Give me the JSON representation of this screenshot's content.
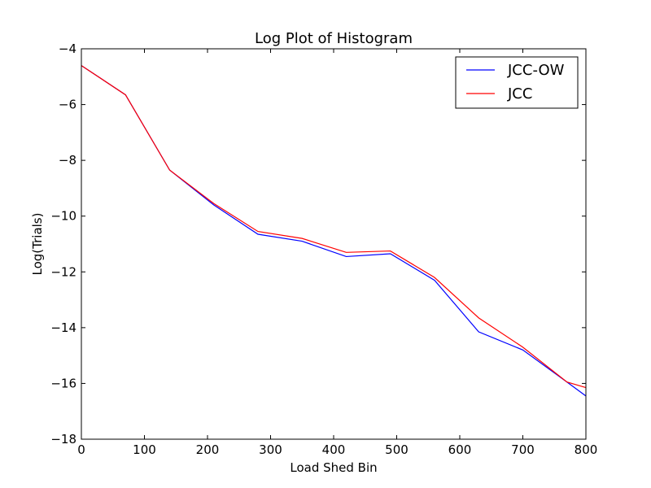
{
  "chart_data": {
    "type": "line",
    "title": "Log Plot of Histogram",
    "xlabel": "Load Shed Bin",
    "ylabel": "Log(Trials)",
    "xlim": [
      0,
      800
    ],
    "ylim": [
      -18,
      -4
    ],
    "xticks": [
      0,
      100,
      200,
      300,
      400,
      500,
      600,
      700,
      800
    ],
    "yticks": [
      -18,
      -16,
      -14,
      -12,
      -10,
      -8,
      -6,
      -4
    ],
    "xtick_labels": [
      "0",
      "100",
      "200",
      "300",
      "400",
      "500",
      "600",
      "700",
      "800"
    ],
    "ytick_labels": [
      "−18",
      "−16",
      "−14",
      "−12",
      "−10",
      "−8",
      "−6",
      "−4"
    ],
    "grid": false,
    "legend_position": "top-right",
    "series": [
      {
        "name": "JCC-OW",
        "color": "#0000ff",
        "x": [
          0,
          70,
          140,
          210,
          280,
          350,
          420,
          490,
          560,
          630,
          700,
          770,
          800
        ],
        "y": [
          -4.6,
          -5.65,
          -8.35,
          -9.6,
          -10.65,
          -10.9,
          -11.45,
          -11.35,
          -12.3,
          -14.15,
          -14.8,
          -15.95,
          -16.45
        ]
      },
      {
        "name": "JCC",
        "color": "#ff0000",
        "x": [
          0,
          70,
          140,
          210,
          280,
          350,
          420,
          490,
          560,
          630,
          700,
          770,
          800
        ],
        "y": [
          -4.6,
          -5.65,
          -8.35,
          -9.55,
          -10.55,
          -10.8,
          -11.3,
          -11.25,
          -12.2,
          -13.65,
          -14.7,
          -15.95,
          -16.15
        ]
      }
    ]
  }
}
